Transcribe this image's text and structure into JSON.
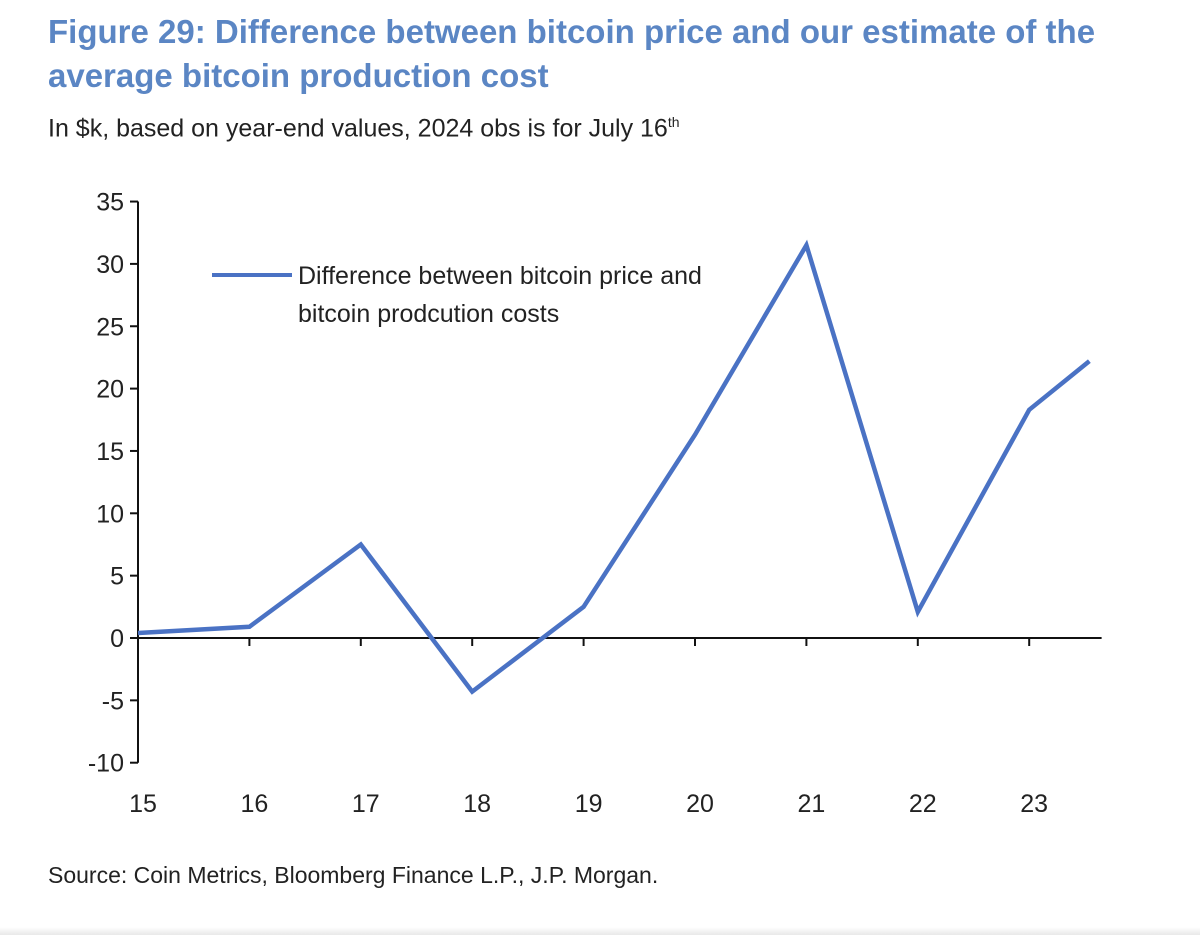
{
  "title": "Figure 29: Difference between bitcoin price and our estimate of the average bitcoin production cost",
  "subtitle": "In $k, based on year-end values, 2024 obs is for July 16",
  "subtitle_sup": "th",
  "source": "Source: Coin Metrics, Bloomberg Finance L.P., J.P. Morgan.",
  "chart_data": {
    "type": "line",
    "title": "Figure 29: Difference between bitcoin price and our estimate of the average bitcoin production cost",
    "xlabel": "",
    "ylabel": "",
    "xlim": [
      15,
      23.65
    ],
    "ylim": [
      -10,
      35
    ],
    "x_ticks": [
      "15",
      "16",
      "17",
      "18",
      "19",
      "20",
      "21",
      "22",
      "23"
    ],
    "y_ticks": [
      "35",
      "30",
      "25",
      "20",
      "15",
      "10",
      "5",
      "0",
      "-5",
      "-10"
    ],
    "grid": false,
    "legend_placement": "top-left",
    "series": [
      {
        "name": "Difference between bitcoin price and bitcoin prodcution costs",
        "legend_lines": [
          "Difference between bitcoin price and",
          "bitcoin prodcution costs"
        ],
        "color": "#4a72c4",
        "x": [
          15,
          16,
          17,
          18,
          19,
          20,
          21,
          22,
          23,
          23.54
        ],
        "values": [
          0.4,
          0.9,
          7.5,
          -4.3,
          2.5,
          16.3,
          31.5,
          2.1,
          18.3,
          22.2
        ]
      }
    ]
  }
}
